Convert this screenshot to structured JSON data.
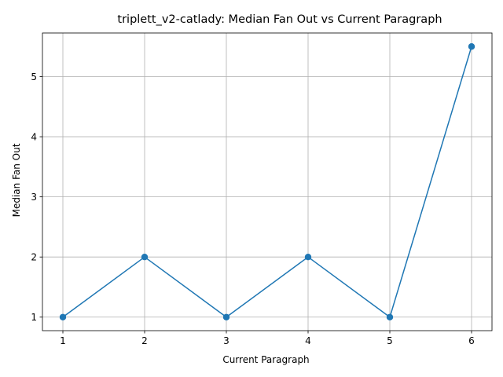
{
  "chart_data": {
    "type": "line",
    "title": "triplett_v2-catlady: Median Fan Out vs Current Paragraph",
    "xlabel": "Current Paragraph",
    "ylabel": "Median Fan Out",
    "x": [
      1,
      2,
      3,
      4,
      5,
      6
    ],
    "series": [
      {
        "values": [
          1,
          2,
          1,
          2,
          1,
          5.5
        ],
        "color": "#1f77b4",
        "marker": "circle"
      }
    ],
    "xticks": [
      "1",
      "2",
      "3",
      "4",
      "5",
      "6"
    ],
    "yticks": [
      "1",
      "2",
      "3",
      "4",
      "5"
    ],
    "xlim": [
      0.75,
      6.25
    ],
    "ylim": [
      0.775,
      5.725
    ],
    "grid": true,
    "legend": "none"
  }
}
